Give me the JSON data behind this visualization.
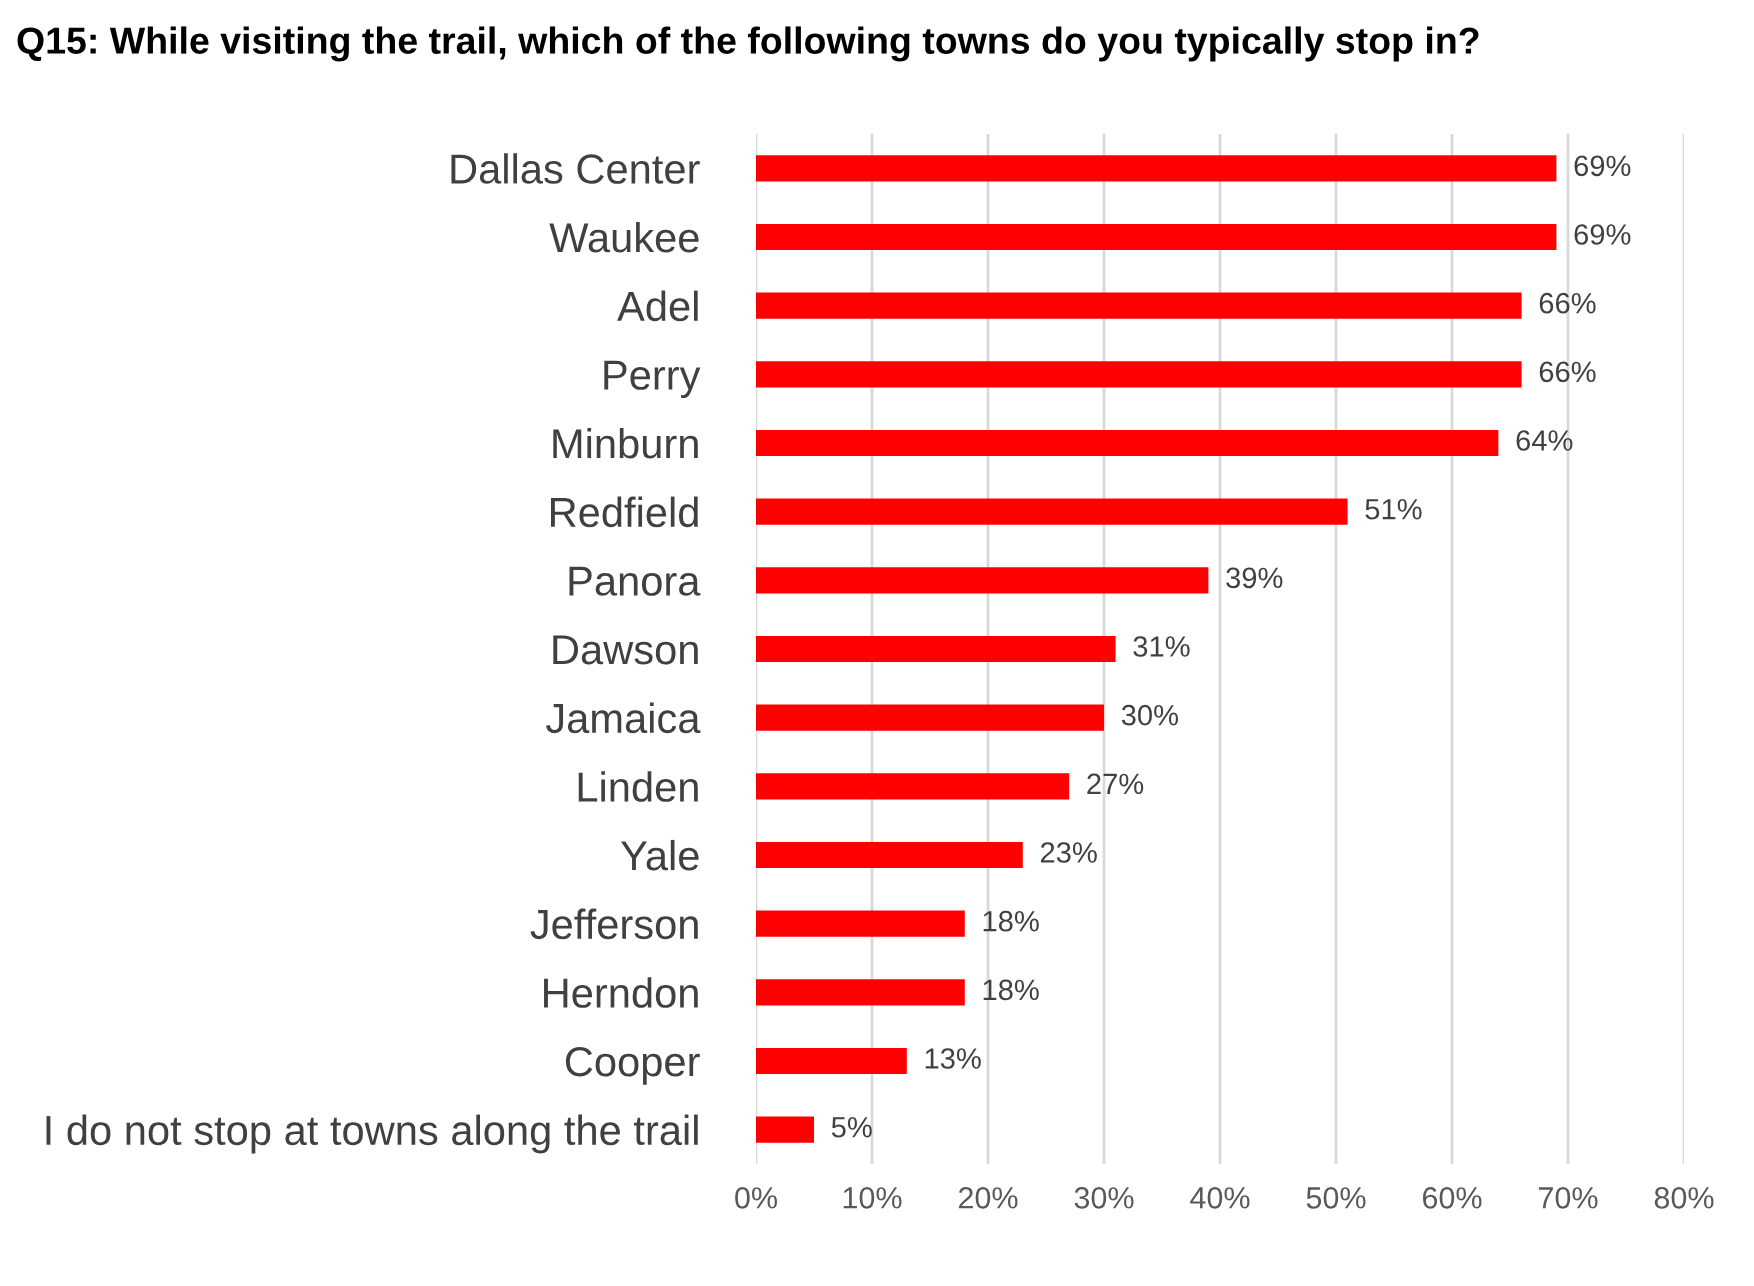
{
  "chart_data": {
    "type": "bar",
    "orientation": "horizontal",
    "title": "Q15: While visiting the trail, which of the following towns do you typically stop in?",
    "categories": [
      "Dallas Center",
      "Waukee",
      "Adel",
      "Perry",
      "Minburn",
      "Redfield",
      "Panora",
      "Dawson",
      "Jamaica",
      "Linden",
      "Yale",
      "Jefferson",
      "Herndon",
      "Cooper",
      "I do not stop at towns along the trail"
    ],
    "values": [
      69,
      69,
      66,
      66,
      64,
      51,
      39,
      31,
      30,
      27,
      23,
      18,
      18,
      13,
      5
    ],
    "value_labels": [
      "69%",
      "69%",
      "66%",
      "66%",
      "64%",
      "51%",
      "39%",
      "31%",
      "30%",
      "27%",
      "23%",
      "18%",
      "18%",
      "13%",
      "5%"
    ],
    "color": "#ff0000",
    "xlim": [
      0,
      80
    ],
    "xticks": [
      {
        "value": 0,
        "label": "0%"
      },
      {
        "value": 10,
        "label": "10%"
      },
      {
        "value": 20,
        "label": "20%"
      },
      {
        "value": 30,
        "label": "30%"
      },
      {
        "value": 40,
        "label": "40%"
      },
      {
        "value": 50,
        "label": "50%"
      },
      {
        "value": 60,
        "label": "60%"
      },
      {
        "value": 70,
        "label": "70%"
      },
      {
        "value": 80,
        "label": "80%"
      }
    ],
    "grid": "x"
  }
}
